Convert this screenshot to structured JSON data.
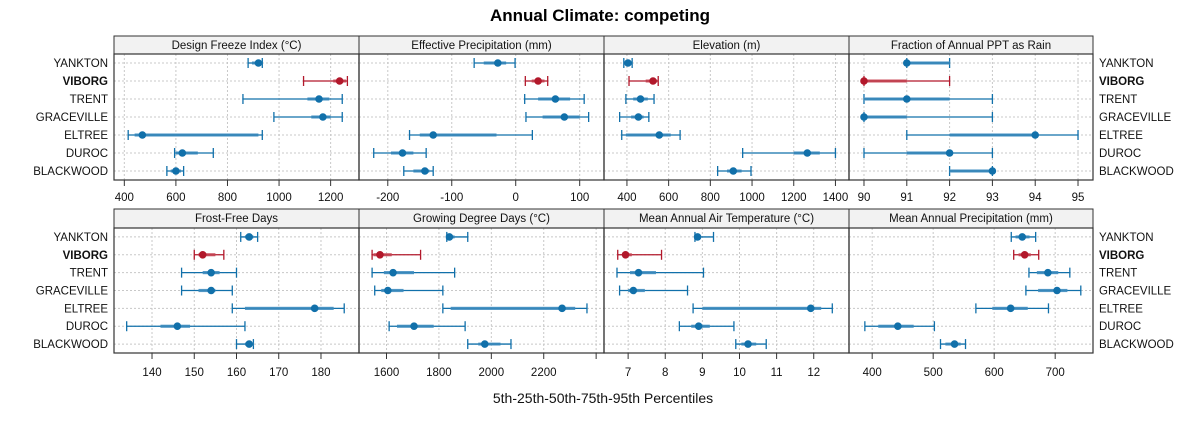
{
  "chart_data": {
    "type": "dotplot-percentile-ranges",
    "title": "Annual Climate: competing",
    "xlabel": "5th-25th-50th-75th-95th Percentiles",
    "sites": [
      "YANKTON",
      "VIBORG",
      "TRENT",
      "GRACEVILLE",
      "ELTREE",
      "DUROC",
      "BLACKWOOD"
    ],
    "highlight_site": "VIBORG",
    "colors": {
      "default": "#1170aa",
      "highlight": "#b2182b",
      "iqr_default": "#6ca8d1",
      "iqr_highlight": "#d97a84",
      "grid": "#c8c8c8",
      "strip_bg": "#f2f2f2"
    },
    "grid": true,
    "layout": "2 rows x 4 columns",
    "panels": [
      {
        "title": "Design Freeze Index (°C)",
        "xlim": [
          360,
          1310
        ],
        "ticks": [
          400,
          600,
          800,
          1000,
          1200
        ],
        "values": {
          "YANKTON": [
            880,
            895,
            920,
            930,
            935
          ],
          "VIBORG": [
            1095,
            1210,
            1235,
            1260,
            1265
          ],
          "TRENT": [
            860,
            1110,
            1155,
            1195,
            1245
          ],
          "GRACEVILLE": [
            980,
            1125,
            1170,
            1200,
            1245
          ],
          "ELTREE": [
            415,
            440,
            470,
            920,
            935
          ],
          "DUROC": [
            595,
            600,
            625,
            685,
            745
          ],
          "BLACKWOOD": [
            565,
            580,
            600,
            620,
            630
          ]
        }
      },
      {
        "title": "Effective Precipitation (mm)",
        "xlim": [
          -245,
          138
        ],
        "ticks": [
          -200,
          -100,
          0,
          100
        ],
        "values": {
          "YANKTON": [
            -65,
            -50,
            -28,
            -15,
            -1
          ],
          "VIBORG": [
            15,
            25,
            35,
            45,
            50
          ],
          "TRENT": [
            14,
            35,
            62,
            85,
            107
          ],
          "GRACEVILLE": [
            16,
            42,
            76,
            100,
            114
          ],
          "ELTREE": [
            -166,
            -150,
            -129,
            -30,
            26
          ],
          "DUROC": [
            -222,
            -195,
            -177,
            -160,
            -140
          ],
          "BLACKWOOD": [
            -175,
            -160,
            -142,
            -135,
            -129
          ]
        }
      },
      {
        "title": "Elevation (m)",
        "xlim": [
          290,
          1465
        ],
        "ticks": [
          400,
          600,
          800,
          1000,
          1200,
          1400
        ],
        "values": {
          "YANKTON": [
            385,
            395,
            405,
            415,
            425
          ],
          "VIBORG": [
            410,
            490,
            525,
            545,
            550
          ],
          "TRENT": [
            395,
            430,
            465,
            500,
            530
          ],
          "GRACEVILLE": [
            365,
            420,
            455,
            480,
            505
          ],
          "ELTREE": [
            375,
            395,
            555,
            610,
            655
          ],
          "DUROC": [
            955,
            1200,
            1265,
            1325,
            1400
          ],
          "BLACKWOOD": [
            835,
            880,
            910,
            950,
            995
          ]
        }
      },
      {
        "title": "Fraction of Annual PPT as Rain",
        "xlim": [
          89.65,
          95.35
        ],
        "ticks": [
          90,
          91,
          92,
          93,
          94,
          95
        ],
        "values": {
          "YANKTON": [
            91,
            91,
            91,
            92,
            92
          ],
          "VIBORG": [
            90,
            90,
            90,
            91,
            92
          ],
          "TRENT": [
            90,
            90,
            91,
            92,
            93
          ],
          "GRACEVILLE": [
            90,
            90,
            90,
            91,
            93
          ],
          "ELTREE": [
            91,
            92,
            94,
            94,
            95
          ],
          "DUROC": [
            90,
            91,
            92,
            92,
            93
          ],
          "BLACKWOOD": [
            92,
            92,
            93,
            93,
            93
          ]
        }
      },
      {
        "title": "Frost-Free Days",
        "xlim": [
          131,
          189
        ],
        "ticks": [
          140,
          150,
          160,
          170,
          180
        ],
        "values": {
          "YANKTON": [
            161,
            162,
            163,
            164,
            165
          ],
          "VIBORG": [
            150,
            151,
            152,
            155,
            157
          ],
          "TRENT": [
            147,
            152,
            154,
            156,
            160
          ],
          "GRACEVILLE": [
            147,
            151,
            154,
            155,
            159
          ],
          "ELTREE": [
            159,
            162,
            178.5,
            183,
            185.5
          ],
          "DUROC": [
            134,
            142,
            146,
            149,
            162
          ],
          "BLACKWOOD": [
            160,
            162,
            163,
            164,
            164
          ]
        }
      },
      {
        "title": "Growing Degree Days (°C)",
        "xlim": [
          1495,
          2430
        ],
        "ticks": [
          1600,
          1800,
          2000,
          2200,
          2400
        ],
        "tick_labels": [
          "1600",
          "1800",
          "2000",
          "2200",
          ""
        ],
        "values": {
          "YANKTON": [
            1830,
            1835,
            1840,
            1860,
            1910
          ],
          "VIBORG": [
            1545,
            1550,
            1575,
            1620,
            1730
          ],
          "TRENT": [
            1545,
            1590,
            1625,
            1705,
            1860
          ],
          "GRACEVILLE": [
            1555,
            1580,
            1605,
            1665,
            1815
          ],
          "ELTREE": [
            1815,
            1845,
            2270,
            2320,
            2365
          ],
          "DUROC": [
            1610,
            1640,
            1705,
            1780,
            1900
          ],
          "BLACKWOOD": [
            1910,
            1950,
            1975,
            2035,
            2075
          ]
        }
      },
      {
        "title": "Mean Annual Air Temperature (°C)",
        "xlim": [
          6.35,
          12.95
        ],
        "ticks": [
          7,
          8,
          9,
          10,
          11,
          12
        ],
        "values": {
          "YANKTON": [
            8.8,
            8.85,
            8.87,
            8.95,
            9.3
          ],
          "VIBORG": [
            6.72,
            6.85,
            6.93,
            7.1,
            7.9
          ],
          "TRENT": [
            6.7,
            7.05,
            7.28,
            7.75,
            9.03
          ],
          "GRACEVILLE": [
            6.77,
            7.0,
            7.14,
            7.45,
            8.6
          ],
          "ELTREE": [
            8.75,
            9.0,
            11.92,
            12.2,
            12.5
          ],
          "DUROC": [
            8.38,
            8.7,
            8.9,
            9.2,
            9.85
          ],
          "BLACKWOOD": [
            9.9,
            10.05,
            10.23,
            10.45,
            10.72
          ]
        }
      },
      {
        "title": "Mean Annual Precipitation (mm)",
        "xlim": [
          362,
          762
        ],
        "ticks": [
          400,
          500,
          600,
          700
        ],
        "values": {
          "YANKTON": [
            628,
            635,
            646,
            658,
            668
          ],
          "VIBORG": [
            632,
            640,
            650,
            660,
            673
          ],
          "TRENT": [
            657,
            670,
            688,
            705,
            724
          ],
          "GRACEVILLE": [
            652,
            672,
            703,
            720,
            742
          ],
          "ELTREE": [
            570,
            597,
            627,
            655,
            689
          ],
          "DUROC": [
            388,
            410,
            442,
            468,
            502
          ],
          "BLACKWOOD": [
            512,
            520,
            535,
            545,
            553
          ]
        }
      }
    ]
  }
}
